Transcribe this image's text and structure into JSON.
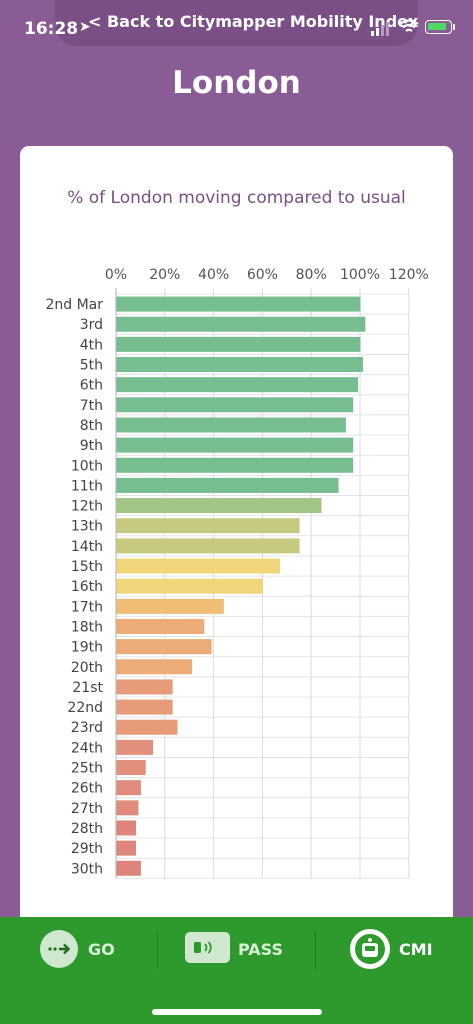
{
  "status_bar": {
    "time": "16:28",
    "back_link": "Back to Citymapper Mobility Index",
    "icons": [
      "location-arrow-icon",
      "cellular-signal-icon",
      "wifi-icon",
      "battery-charging-icon"
    ]
  },
  "page": {
    "title": "London"
  },
  "chart_data": {
    "type": "bar",
    "orientation": "horizontal",
    "title": "% of London moving compared to usual",
    "xlim": [
      0,
      120
    ],
    "x_ticks": [
      "0%",
      "20%",
      "40%",
      "60%",
      "80%",
      "100%",
      "120%"
    ],
    "tick_values": [
      0,
      20,
      40,
      60,
      80,
      100,
      120
    ],
    "grid": true,
    "categories": [
      "2nd Mar",
      "3rd",
      "4th",
      "5th",
      "6th",
      "7th",
      "8th",
      "9th",
      "10th",
      "11th",
      "12th",
      "13th",
      "14th",
      "15th",
      "16th",
      "17th",
      "18th",
      "19th",
      "20th",
      "21st",
      "22nd",
      "23rd",
      "24th",
      "25th",
      "26th",
      "27th",
      "28th",
      "29th",
      "30th"
    ],
    "values": [
      100,
      102,
      100,
      101,
      99,
      97,
      94,
      97,
      97,
      91,
      84,
      75,
      75,
      67,
      60,
      44,
      36,
      39,
      31,
      23,
      23,
      25,
      15,
      12,
      10,
      9,
      8,
      8,
      10
    ],
    "colors": [
      "#76bd8f",
      "#76bd8f",
      "#76bd8f",
      "#76bd8f",
      "#76bd8f",
      "#76bd8f",
      "#76bd8f",
      "#76bd8f",
      "#76bd8f",
      "#76bd8f",
      "#a2c585",
      "#c6ca7f",
      "#c6ca7f",
      "#f0d57a",
      "#f0d57a",
      "#efbd75",
      "#ecab77",
      "#ecab77",
      "#ecab77",
      "#e79b79",
      "#e79b79",
      "#e79b79",
      "#e28f7b",
      "#e28f7b",
      "#e08c7c",
      "#e08c7c",
      "#de857b",
      "#de857b",
      "#de857b"
    ]
  },
  "bottom_nav": {
    "items": [
      {
        "label": "GO",
        "icon": "go-arrow-icon"
      },
      {
        "label": "PASS",
        "icon": "pass-card-icon"
      },
      {
        "label": "CMI",
        "icon": "cmi-logo-icon"
      }
    ],
    "background": "#2e9a2e"
  }
}
